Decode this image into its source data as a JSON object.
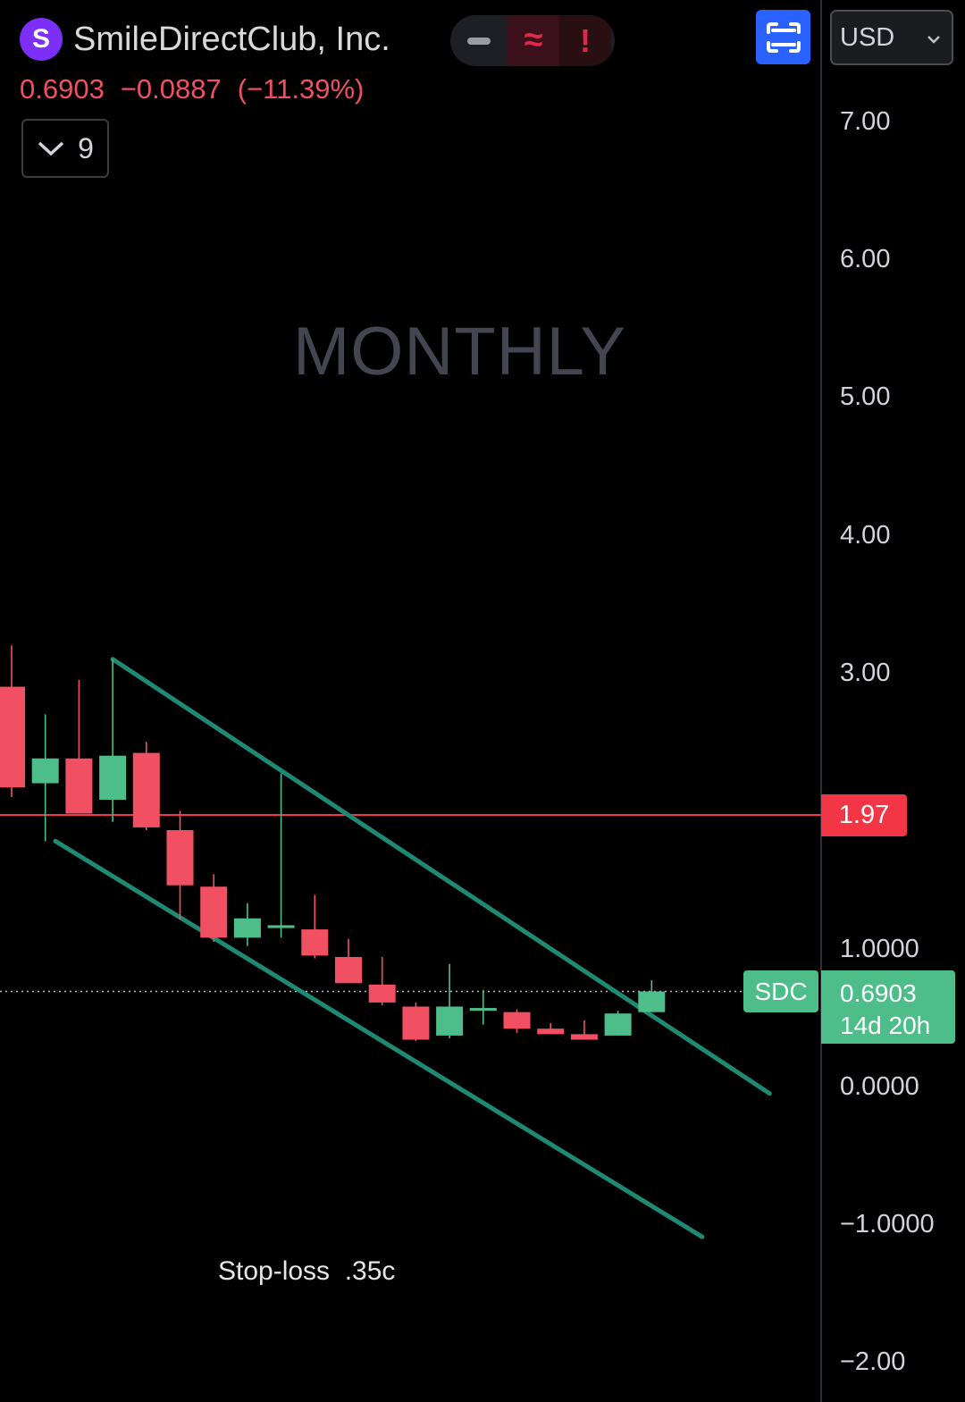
{
  "header": {
    "logo_letter": "S",
    "company": "SmileDirectClub, Inc.",
    "last_price": "0.6903",
    "change": "−0.0887",
    "change_pct": "(−11.39%)"
  },
  "toolbar": {
    "status_mid": "≈",
    "status_alert": "!",
    "currency": "USD",
    "indicators_count": "9"
  },
  "watermark": "MONTHLY",
  "annotation": "Stop-loss  .35c",
  "axis": {
    "labels": [
      "7.00",
      "6.00",
      "5.00",
      "4.00",
      "3.00",
      "1.0000",
      "0.0000",
      "−1.0000",
      "−2.00"
    ]
  },
  "tags": {
    "horizontal_line": "1.97",
    "symbol": "SDC",
    "current_price": "0.6903",
    "countdown": "14d 20h"
  },
  "colors": {
    "up": "#4dbd8a",
    "down": "#f05062",
    "channel": "#1e8a73",
    "hline": "#f23645",
    "accent": "#2962ff"
  },
  "chart_data": {
    "type": "candlestick",
    "interval": "Monthly",
    "symbol": "SDC",
    "ylim": [
      -2.0,
      7.0
    ],
    "horizontal_line": 1.97,
    "last_price": 0.6903,
    "candles": [
      {
        "o": 2.9,
        "h": 3.2,
        "l": 2.1,
        "c": 2.17
      },
      {
        "o": 2.2,
        "h": 2.7,
        "l": 1.78,
        "c": 2.38
      },
      {
        "o": 2.38,
        "h": 2.95,
        "l": 1.98,
        "c": 1.98
      },
      {
        "o": 2.08,
        "h": 3.1,
        "l": 1.92,
        "c": 2.4
      },
      {
        "o": 2.42,
        "h": 2.5,
        "l": 1.86,
        "c": 1.88
      },
      {
        "o": 1.86,
        "h": 2.0,
        "l": 1.21,
        "c": 1.46
      },
      {
        "o": 1.45,
        "h": 1.54,
        "l": 1.05,
        "c": 1.08
      },
      {
        "o": 1.08,
        "h": 1.33,
        "l": 1.02,
        "c": 1.22
      },
      {
        "o": 1.15,
        "h": 2.27,
        "l": 1.08,
        "c": 1.17
      },
      {
        "o": 1.14,
        "h": 1.39,
        "l": 0.93,
        "c": 0.95
      },
      {
        "o": 0.94,
        "h": 1.07,
        "l": 0.77,
        "c": 0.75
      },
      {
        "o": 0.74,
        "h": 0.94,
        "l": 0.59,
        "c": 0.61
      },
      {
        "o": 0.58,
        "h": 0.61,
        "l": 0.33,
        "c": 0.34
      },
      {
        "o": 0.37,
        "h": 0.89,
        "l": 0.35,
        "c": 0.58
      },
      {
        "o": 0.55,
        "h": 0.7,
        "l": 0.45,
        "c": 0.57
      },
      {
        "o": 0.54,
        "h": 0.56,
        "l": 0.39,
        "c": 0.42
      },
      {
        "o": 0.42,
        "h": 0.46,
        "l": 0.38,
        "c": 0.38
      },
      {
        "o": 0.38,
        "h": 0.48,
        "l": 0.35,
        "c": 0.34
      },
      {
        "o": 0.37,
        "h": 0.55,
        "l": 0.37,
        "c": 0.53
      },
      {
        "o": 0.54,
        "h": 0.77,
        "l": 0.55,
        "c": 0.69
      }
    ],
    "channel_lines": [
      {
        "name": "upper",
        "from": {
          "bar": 3,
          "price": 3.1
        },
        "to": {
          "bar": 22.5,
          "price": -0.05
        }
      },
      {
        "name": "lower",
        "from": {
          "bar": 1.3,
          "price": 1.78
        },
        "to": {
          "bar": 20.5,
          "price": -1.09
        }
      }
    ]
  }
}
